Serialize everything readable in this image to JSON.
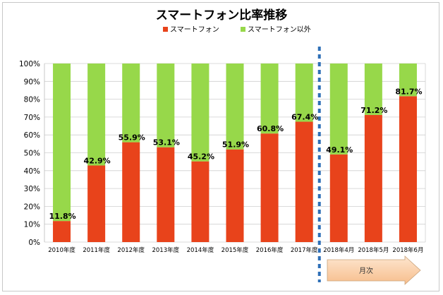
{
  "chart_data": {
    "type": "bar",
    "stacked": true,
    "title": "スマートフォン比率推移",
    "categories": [
      "2010年度",
      "2011年度",
      "2012年度",
      "2013年度",
      "2014年度",
      "2015年度",
      "2016年度",
      "2017年度",
      "2018年4月",
      "2018年5月",
      "2018年6月"
    ],
    "series": [
      {
        "name": "スマートフォン",
        "color": "#e8431b",
        "values": [
          11.8,
          42.9,
          55.9,
          53.1,
          45.2,
          51.9,
          60.8,
          67.4,
          49.1,
          71.2,
          81.7
        ]
      },
      {
        "name": "スマートフォン以外",
        "color": "#97d84a",
        "values": [
          88.2,
          57.1,
          44.1,
          46.9,
          54.8,
          48.1,
          39.2,
          32.6,
          50.9,
          28.8,
          18.3
        ]
      }
    ],
    "data_labels": [
      "11.8%",
      "42.9%",
      "55.9%",
      "53.1%",
      "45.2%",
      "51.9%",
      "60.8%",
      "67.4%",
      "49.1%",
      "71.2%",
      "81.7%"
    ],
    "ylim": [
      0,
      100
    ],
    "yticks": [
      "0%",
      "10%",
      "20%",
      "30%",
      "40%",
      "50%",
      "60%",
      "70%",
      "80%",
      "90%",
      "100%"
    ],
    "grid": true,
    "legend": "top-center",
    "divider_after": "2017年度",
    "arrow_label": "月次"
  }
}
